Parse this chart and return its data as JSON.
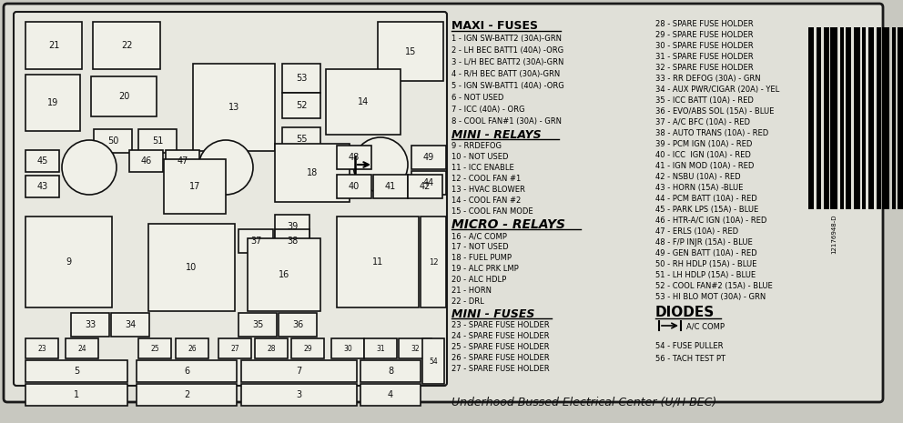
{
  "bg_color": "#d8d8d0",
  "inner_bg": "#e8e8e0",
  "box_facecolor": "#f0f0e8",
  "title": "Underhood Bussed Electrical Center (U/H BEC)",
  "left_panel": {
    "maxi_fuses_title": "MAXI - FUSES",
    "maxi_fuses": [
      "1 - IGN SW-BATT2 (30A)-GRN",
      "2 - LH BEC BATT1 (40A) -ORG",
      "3 - L/H BEC BATT2 (30A)-GRN",
      "4 - R/H BEC BATT (30A)-GRN",
      "5 - IGN SW-BATT1 (40A) -ORG",
      "6 - NOT USED",
      "7 - ICC (40A) - ORG",
      "8 - COOL FAN#1 (30A) - GRN"
    ],
    "mini_relays_title": "MINI - RELAYS",
    "mini_relays": [
      "9 - RRDEFOG",
      "10 - NOT USED",
      "11 - ICC ENABLE",
      "12 - COOL FAN #1",
      "13 - HVAC BLOWER",
      "14 - COOL FAN #2",
      "15 - COOL FAN MODE"
    ],
    "micro_relays_title": "MICRO - RELAYS",
    "micro_relays": [
      "16 - A/C COMP",
      "17 - NOT USED",
      "18 - FUEL PUMP",
      "19 - ALC PRK LMP",
      "20 - ALC HDLP",
      "21 - HORN",
      "22 - DRL"
    ],
    "mini_fuses_title": "MINI - FUSES",
    "mini_fuses": [
      "23 - SPARE FUSE HOLDER",
      "24 - SPARE FUSE HOLDER",
      "25 - SPARE FUSE HOLDER",
      "26 - SPARE FUSE HOLDER",
      "27 - SPARE FUSE HOLDER"
    ]
  },
  "right_col": [
    "28 - SPARE FUSE HOLDER",
    "29 - SPARE FUSE HOLDER",
    "30 - SPARE FUSE HOLDER",
    "31 - SPARE FUSE HOLDER",
    "32 - SPARE FUSE HOLDER",
    "33 - RR DEFOG (30A) - GRN",
    "34 - AUX PWR/CIGAR (20A) - YEL",
    "35 - ICC BATT (10A) - RED",
    "36 - EVO/ABS SOL (15A) - BLUE",
    "37 - A/C BFC (10A) - RED",
    "38 - AUTO TRANS (10A) - RED",
    "39 - PCM IGN (10A) - RED",
    "40 - ICC  IGN (10A) - RED",
    "41 - IGN MOD (10A) - RED",
    "42 - NSBU (10A) - RED",
    "43 - HORN (15A) -BLUE",
    "44 - PCM BATT (10A) - RED",
    "45 - PARK LPS (15A) - BLUE",
    "46 - HTR-A/C IGN (10A) - RED",
    "47 - ERLS (10A) - RED",
    "48 - F/P INJR (15A) - BLUE",
    "49 - GEN BATT (10A) - RED",
    "50 - RH HDLP (15A) - BLUE",
    "51 - LH HDLP (15A) - BLUE",
    "52 - COOL FAN#2 (15A) - BLUE",
    "53 - HI BLO MOT (30A) - GRN"
  ],
  "diodes_title": "DIODES",
  "diodes_lines": [
    "54 - FUSE PULLER",
    "56 - TACH TEST PT"
  ],
  "barcode_text": "12176948-D"
}
